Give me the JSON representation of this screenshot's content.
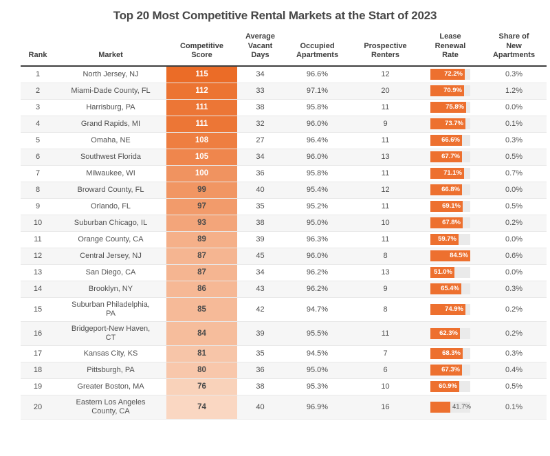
{
  "chart_data": {
    "type": "table",
    "title": "Top 20 Most Competitive Rental Markets at the Start of 2023",
    "columns": [
      {
        "key": "rank",
        "label": "Rank"
      },
      {
        "key": "market",
        "label": "Market"
      },
      {
        "key": "score",
        "label": "Competitive\nScore"
      },
      {
        "key": "avg_vacant_days",
        "label": "Average\nVacant\nDays"
      },
      {
        "key": "occupied_pct",
        "label": "Occupied\nApartments"
      },
      {
        "key": "prospective_renters",
        "label": "Prospective\nRenters"
      },
      {
        "key": "lease_renewal_pct",
        "label": "Lease\nRenewal\nRate"
      },
      {
        "key": "share_new_pct",
        "label": "Share of\nNew\nApartments"
      }
    ],
    "rows": [
      {
        "rank": 1,
        "market": "North Jersey, NJ",
        "score": 115,
        "avg_vacant_days": 34,
        "occupied_pct": 96.6,
        "prospective_renters": 12,
        "lease_renewal_pct": 72.2,
        "share_new_pct": 0.3
      },
      {
        "rank": 2,
        "market": "Miami-Dade County, FL",
        "score": 112,
        "avg_vacant_days": 33,
        "occupied_pct": 97.1,
        "prospective_renters": 20,
        "lease_renewal_pct": 70.9,
        "share_new_pct": 1.2
      },
      {
        "rank": 3,
        "market": "Harrisburg, PA",
        "score": 111,
        "avg_vacant_days": 38,
        "occupied_pct": 95.8,
        "prospective_renters": 11,
        "lease_renewal_pct": 75.8,
        "share_new_pct": 0.0
      },
      {
        "rank": 4,
        "market": "Grand Rapids, MI",
        "score": 111,
        "avg_vacant_days": 32,
        "occupied_pct": 96.0,
        "prospective_renters": 9,
        "lease_renewal_pct": 73.7,
        "share_new_pct": 0.1
      },
      {
        "rank": 5,
        "market": "Omaha, NE",
        "score": 108,
        "avg_vacant_days": 27,
        "occupied_pct": 96.4,
        "prospective_renters": 11,
        "lease_renewal_pct": 66.6,
        "share_new_pct": 0.3
      },
      {
        "rank": 6,
        "market": "Southwest Florida",
        "score": 105,
        "avg_vacant_days": 34,
        "occupied_pct": 96.0,
        "prospective_renters": 13,
        "lease_renewal_pct": 67.7,
        "share_new_pct": 0.5
      },
      {
        "rank": 7,
        "market": "Milwaukee, WI",
        "score": 100,
        "avg_vacant_days": 36,
        "occupied_pct": 95.8,
        "prospective_renters": 11,
        "lease_renewal_pct": 71.1,
        "share_new_pct": 0.7
      },
      {
        "rank": 8,
        "market": "Broward County, FL",
        "score": 99,
        "avg_vacant_days": 40,
        "occupied_pct": 95.4,
        "prospective_renters": 12,
        "lease_renewal_pct": 66.8,
        "share_new_pct": 0.0
      },
      {
        "rank": 9,
        "market": "Orlando, FL",
        "score": 97,
        "avg_vacant_days": 35,
        "occupied_pct": 95.2,
        "prospective_renters": 11,
        "lease_renewal_pct": 69.1,
        "share_new_pct": 0.5
      },
      {
        "rank": 10,
        "market": "Suburban Chicago, IL",
        "score": 93,
        "avg_vacant_days": 38,
        "occupied_pct": 95.0,
        "prospective_renters": 10,
        "lease_renewal_pct": 67.8,
        "share_new_pct": 0.2
      },
      {
        "rank": 11,
        "market": "Orange County, CA",
        "score": 89,
        "avg_vacant_days": 39,
        "occupied_pct": 96.3,
        "prospective_renters": 11,
        "lease_renewal_pct": 59.7,
        "share_new_pct": 0.0
      },
      {
        "rank": 12,
        "market": "Central Jersey, NJ",
        "score": 87,
        "avg_vacant_days": 45,
        "occupied_pct": 96.0,
        "prospective_renters": 8,
        "lease_renewal_pct": 84.5,
        "share_new_pct": 0.6
      },
      {
        "rank": 13,
        "market": "San Diego, CA",
        "score": 87,
        "avg_vacant_days": 34,
        "occupied_pct": 96.2,
        "prospective_renters": 13,
        "lease_renewal_pct": 51.0,
        "share_new_pct": 0.0
      },
      {
        "rank": 14,
        "market": "Brooklyn, NY",
        "score": 86,
        "avg_vacant_days": 43,
        "occupied_pct": 96.2,
        "prospective_renters": 9,
        "lease_renewal_pct": 65.4,
        "share_new_pct": 0.3
      },
      {
        "rank": 15,
        "market": "Suburban Philadelphia,\nPA",
        "score": 85,
        "avg_vacant_days": 42,
        "occupied_pct": 94.7,
        "prospective_renters": 8,
        "lease_renewal_pct": 74.9,
        "share_new_pct": 0.2
      },
      {
        "rank": 16,
        "market": "Bridgeport-New Haven,\nCT",
        "score": 84,
        "avg_vacant_days": 39,
        "occupied_pct": 95.5,
        "prospective_renters": 11,
        "lease_renewal_pct": 62.3,
        "share_new_pct": 0.2
      },
      {
        "rank": 17,
        "market": "Kansas City, KS",
        "score": 81,
        "avg_vacant_days": 35,
        "occupied_pct": 94.5,
        "prospective_renters": 7,
        "lease_renewal_pct": 68.3,
        "share_new_pct": 0.3
      },
      {
        "rank": 18,
        "market": "Pittsburgh, PA",
        "score": 80,
        "avg_vacant_days": 36,
        "occupied_pct": 95.0,
        "prospective_renters": 6,
        "lease_renewal_pct": 67.3,
        "share_new_pct": 0.4
      },
      {
        "rank": 19,
        "market": "Greater Boston, MA",
        "score": 76,
        "avg_vacant_days": 38,
        "occupied_pct": 95.3,
        "prospective_renters": 10,
        "lease_renewal_pct": 60.9,
        "share_new_pct": 0.5
      },
      {
        "rank": 20,
        "market": "Eastern Los Angeles\nCounty, CA",
        "score": 74,
        "avg_vacant_days": 40,
        "occupied_pct": 96.9,
        "prospective_renters": 16,
        "lease_renewal_pct": 41.7,
        "share_new_pct": 0.1
      }
    ]
  },
  "colors": {
    "accent_orange": "#ED702F",
    "score_scale_dark": "#EB6C27",
    "score_scale_light": "#FAD7C2",
    "score_text_light": "#FFFFFF",
    "score_text_dark": "#4A4A4A",
    "bar_track": "#EAEAEA",
    "title_text": "#474747",
    "header_text": "#3D3D3D",
    "body_text": "#4F4F4F",
    "zebra_row": "#F6F6F6",
    "row_divider": "#E8E8E8",
    "header_rule": "#3E3E3E"
  }
}
